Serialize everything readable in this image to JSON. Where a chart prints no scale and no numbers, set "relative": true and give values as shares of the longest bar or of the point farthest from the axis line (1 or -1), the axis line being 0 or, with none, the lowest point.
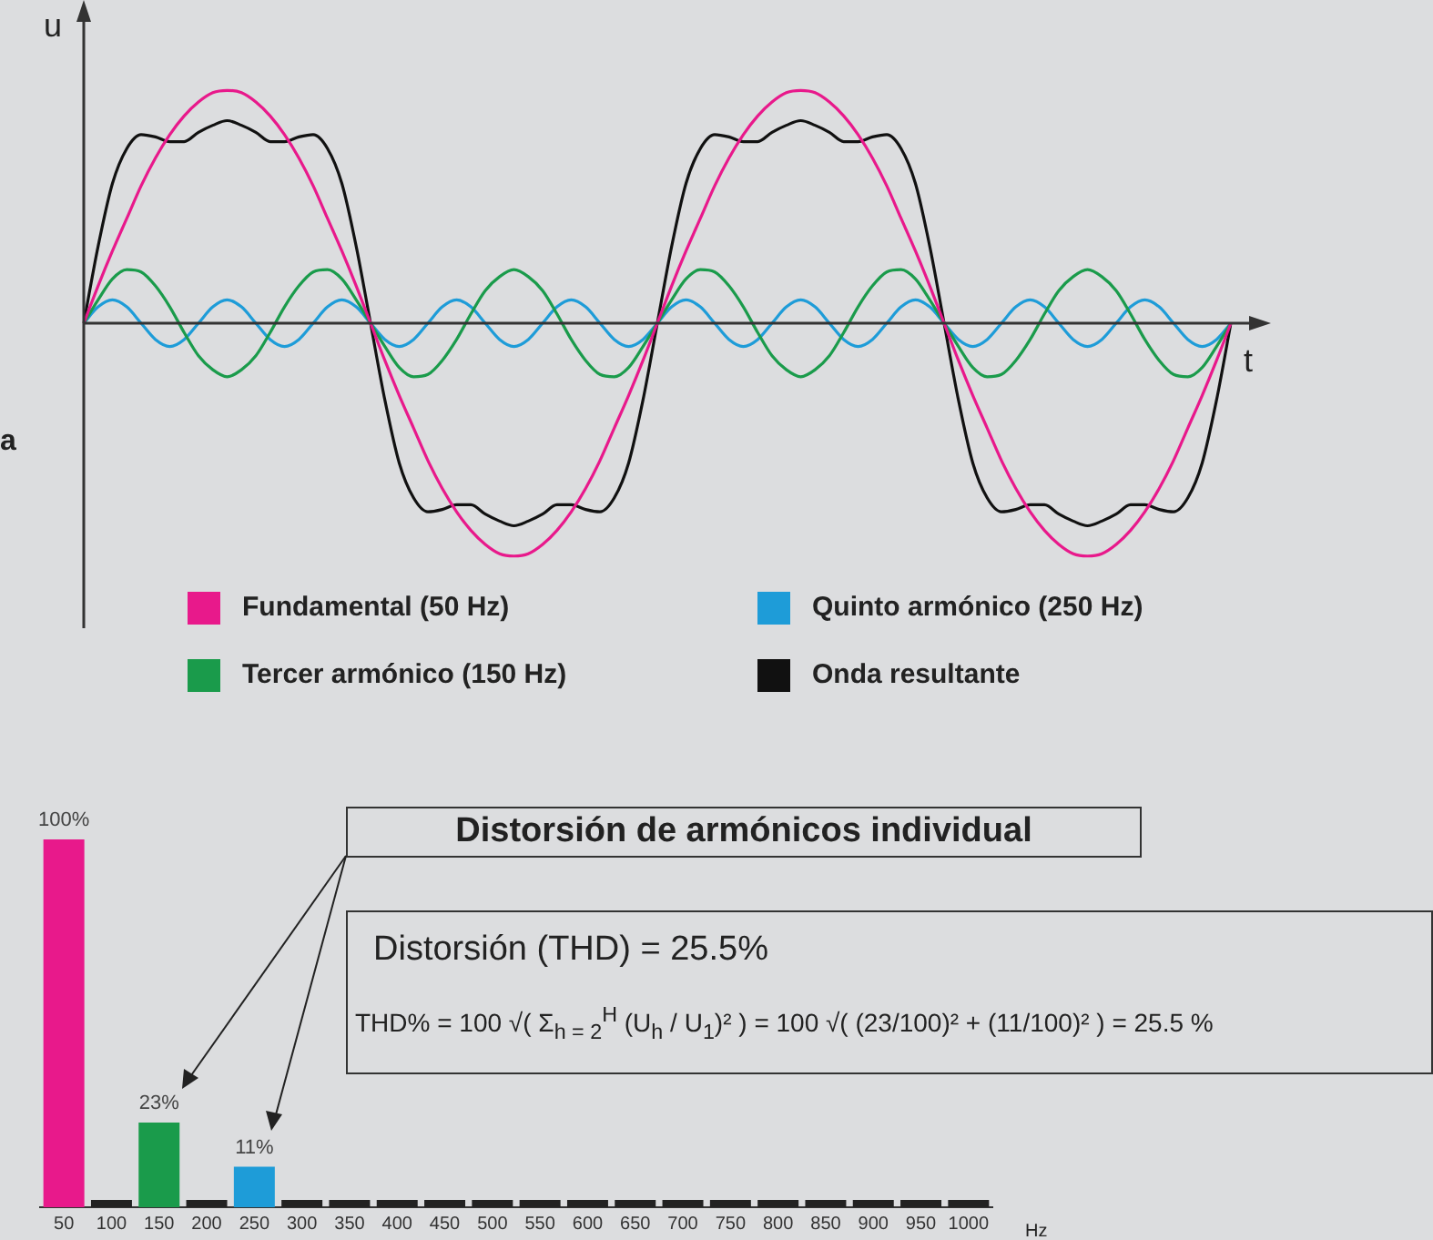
{
  "chart_data": [
    {
      "type": "line",
      "relative": true,
      "xlabel": "t",
      "ylabel": "u",
      "legend": "bottom",
      "annotations": [
        "a"
      ],
      "categories": [
        null,
        null,
        null,
        null,
        null,
        null,
        null,
        null,
        null,
        null,
        null,
        null,
        null,
        null,
        null,
        null,
        null,
        null,
        null,
        null,
        null,
        null,
        null,
        null,
        null,
        null,
        null,
        null,
        null,
        null,
        null,
        null,
        null,
        null,
        null,
        null,
        null,
        null,
        null,
        null,
        null,
        null,
        null,
        null,
        null,
        null,
        null,
        null,
        null,
        null,
        null,
        null,
        null,
        null,
        null,
        null,
        null,
        null,
        null,
        null,
        null,
        null,
        null,
        null,
        null,
        null,
        null,
        null,
        null,
        null,
        null,
        null,
        null,
        null,
        null,
        null,
        null,
        null,
        null,
        null,
        null
      ],
      "series": [
        {
          "name": "Fundamental (50 Hz)",
          "color": "#e8198b",
          "values": [
            0,
            0.16,
            0.31,
            0.45,
            0.59,
            0.71,
            0.81,
            0.89,
            0.95,
            0.99,
            1,
            0.99,
            0.95,
            0.89,
            0.81,
            0.71,
            0.59,
            0.45,
            0.31,
            0.16,
            0,
            -0.16,
            -0.31,
            -0.45,
            -0.59,
            -0.71,
            -0.81,
            -0.89,
            -0.95,
            -0.99,
            -1,
            -0.99,
            -0.95,
            -0.89,
            -0.81,
            -0.71,
            -0.59,
            -0.45,
            -0.31,
            -0.16,
            0,
            0.16,
            0.31,
            0.45,
            0.59,
            0.71,
            0.81,
            0.89,
            0.95,
            0.99,
            1,
            0.99,
            0.95,
            0.89,
            0.81,
            0.71,
            0.59,
            0.45,
            0.31,
            0.16,
            0,
            -0.16,
            -0.31,
            -0.45,
            -0.59,
            -0.71,
            -0.81,
            -0.89,
            -0.95,
            -0.99,
            -1,
            -0.99,
            -0.95,
            -0.89,
            -0.81,
            -0.71,
            -0.59,
            -0.45,
            -0.31,
            -0.16,
            0
          ]
        },
        {
          "name": "Tercer armónico (150 Hz)",
          "color": "#1a9b4b",
          "values": [
            0,
            0.1,
            0.19,
            0.23,
            0.22,
            0.16,
            0.07,
            -0.04,
            -0.14,
            -0.2,
            -0.23,
            -0.2,
            -0.14,
            -0.04,
            0.07,
            0.16,
            0.22,
            0.23,
            0.19,
            0.1,
            0,
            -0.1,
            -0.19,
            -0.23,
            -0.22,
            -0.16,
            -0.07,
            0.04,
            0.14,
            0.2,
            0.23,
            0.2,
            0.14,
            0.04,
            -0.07,
            -0.16,
            -0.22,
            -0.23,
            -0.19,
            -0.1,
            0,
            0.1,
            0.19,
            0.23,
            0.22,
            0.16,
            0.07,
            -0.04,
            -0.14,
            -0.2,
            -0.23,
            -0.2,
            -0.14,
            -0.04,
            0.07,
            0.16,
            0.22,
            0.23,
            0.19,
            0.1,
            0,
            -0.1,
            -0.19,
            -0.23,
            -0.22,
            -0.16,
            -0.07,
            0.04,
            0.14,
            0.2,
            0.23,
            0.2,
            0.14,
            0.04,
            -0.07,
            -0.16,
            -0.22,
            -0.23,
            -0.19,
            -0.1,
            0
          ]
        },
        {
          "name": "Quinto armónico (250 Hz)",
          "color": "#1e9cd8",
          "values": [
            0,
            0.07,
            0.1,
            0.07,
            0,
            -0.07,
            -0.1,
            -0.07,
            0,
            0.07,
            0.1,
            0.07,
            0,
            -0.07,
            -0.1,
            -0.07,
            0,
            0.07,
            0.1,
            0.07,
            0,
            -0.07,
            -0.1,
            -0.07,
            0,
            0.07,
            0.1,
            0.07,
            0,
            -0.07,
            -0.1,
            -0.07,
            0,
            0.07,
            0.1,
            0.07,
            0,
            -0.07,
            -0.1,
            -0.07,
            0,
            0.07,
            0.1,
            0.07,
            0,
            -0.07,
            -0.1,
            -0.07,
            0,
            0.07,
            0.1,
            0.07,
            0,
            -0.07,
            -0.1,
            -0.07,
            0,
            0.07,
            0.1,
            0.07,
            0,
            -0.07,
            -0.1,
            -0.07,
            0,
            0.07,
            0.1,
            0.07,
            0,
            -0.07,
            -0.1,
            -0.07,
            0,
            0.07,
            0.1,
            0.07,
            0,
            -0.07,
            -0.1,
            -0.07,
            0
          ]
        },
        {
          "name": "Onda resultante",
          "color": "#111111",
          "values": [
            0,
            0.33,
            0.6,
            0.75,
            0.81,
            0.8,
            0.78,
            0.78,
            0.82,
            0.85,
            0.87,
            0.85,
            0.82,
            0.78,
            0.78,
            0.8,
            0.81,
            0.75,
            0.6,
            0.33,
            0,
            -0.33,
            -0.6,
            -0.75,
            -0.81,
            -0.8,
            -0.78,
            -0.78,
            -0.82,
            -0.85,
            -0.87,
            -0.85,
            -0.82,
            -0.78,
            -0.78,
            -0.8,
            -0.81,
            -0.75,
            -0.6,
            -0.33,
            0,
            0.33,
            0.6,
            0.75,
            0.81,
            0.8,
            0.78,
            0.78,
            0.82,
            0.85,
            0.87,
            0.85,
            0.82,
            0.78,
            0.78,
            0.8,
            0.81,
            0.75,
            0.6,
            0.33,
            0,
            -0.33,
            -0.6,
            -0.75,
            -0.81,
            -0.8,
            -0.78,
            -0.78,
            -0.82,
            -0.85,
            -0.87,
            -0.85,
            -0.82,
            -0.78,
            -0.78,
            -0.8,
            -0.81,
            -0.75,
            -0.6,
            -0.33,
            0
          ]
        }
      ]
    },
    {
      "type": "bar",
      "title": "Distorsión de armónicos individual",
      "xlabel": "Hz",
      "categories": [
        "50",
        "100",
        "150",
        "200",
        "250",
        "300",
        "350",
        "400",
        "450",
        "500",
        "550",
        "600",
        "650",
        "700",
        "750",
        "800",
        "850",
        "900",
        "950",
        "1000"
      ],
      "values": [
        100,
        2,
        23,
        2,
        11,
        2,
        2,
        2,
        2,
        2,
        2,
        2,
        2,
        2,
        2,
        2,
        2,
        2,
        2,
        2
      ],
      "colors": [
        "#e8198b",
        "#222222",
        "#1a9b4b",
        "#222222",
        "#1e9cd8",
        "#222222",
        "#222222",
        "#222222",
        "#222222",
        "#222222",
        "#222222",
        "#222222",
        "#222222",
        "#222222",
        "#222222",
        "#222222",
        "#222222",
        "#222222",
        "#222222",
        "#222222"
      ],
      "value_labels": [
        "100%",
        null,
        "23%",
        null,
        "11%",
        null,
        null,
        null,
        null,
        null,
        null,
        null,
        null,
        null,
        null,
        null,
        null,
        null,
        null,
        null
      ],
      "annotations": [
        "Distorsión (THD) = 25.5%",
        "THD% = 100 √( Σ$_{h = 2}$$^{H}$ (U$_{h}$ / U$_{1}$)² ) = 100 √( (23/100)² + (11/100)² ) = 25.5 %"
      ]
    }
  ]
}
